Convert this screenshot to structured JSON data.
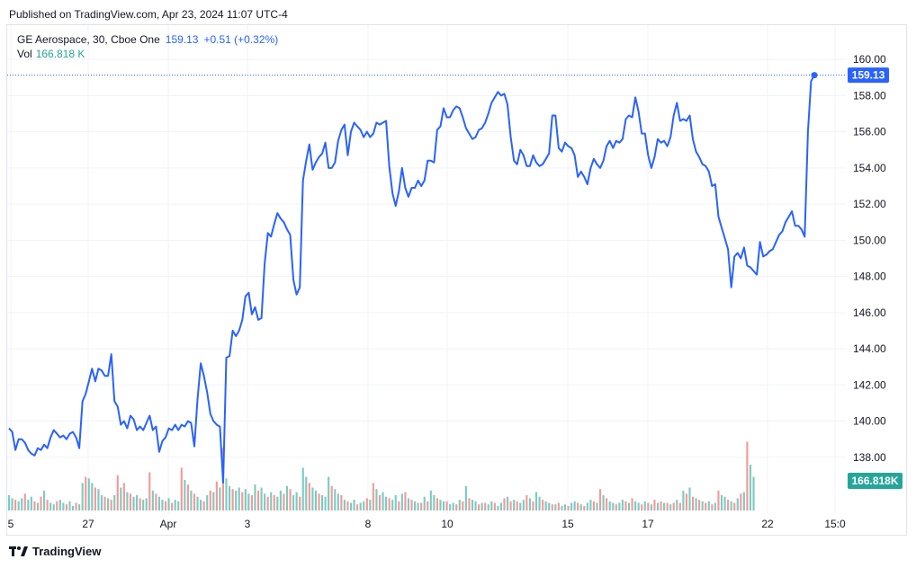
{
  "header": {
    "published": "Published on TradingView.com, Apr 23, 2024 11:07 UTC-4"
  },
  "legend": {
    "symbol": "GE Aerospace, 30, Cboe One",
    "price": "159.13",
    "change": "+0.51 (+0.32%)",
    "vol_label": "Vol",
    "vol_value": "166.818 K"
  },
  "footer": {
    "brand": "TradingView"
  },
  "colors": {
    "line": "#2962ff",
    "vol_up": "#26a69a",
    "vol_down": "#ef5350",
    "price_label_bg": "#2962ff",
    "vol_label_bg": "#26a69a"
  },
  "chart_data": {
    "type": "line",
    "y_axis_ticks": [
      "138.00",
      "140.00",
      "142.00",
      "144.00",
      "146.00",
      "148.00",
      "150.00",
      "152.00",
      "154.00",
      "156.00",
      "158.00",
      "160.00"
    ],
    "ylim": [
      136.3,
      161.0
    ],
    "x_axis_labels": [
      "5",
      "27",
      "Apr",
      "3",
      "8",
      "10",
      "15",
      "17",
      "22",
      "15:0"
    ],
    "last_price_label": "159.13",
    "last_volume_label": "166.818K",
    "grid": true,
    "series": [
      {
        "values": [
          139.6,
          139.4,
          138.4,
          139.0,
          139.0,
          138.8,
          138.4,
          138.2,
          138.1,
          138.5,
          138.4,
          138.7,
          138.5,
          139.1,
          139.5,
          139.3,
          139.1,
          139.2,
          139.0,
          139.3,
          139.4,
          139.1,
          138.5,
          141.1,
          141.5,
          142.2,
          142.9,
          142.2,
          142.9,
          142.8,
          142.5,
          142.5,
          143.7,
          141.1,
          140.8,
          139.8,
          140.0,
          139.6,
          140.3,
          140.1,
          139.5,
          139.7,
          139.5,
          139.9,
          140.3,
          139.5,
          139.7,
          138.3,
          138.9,
          139.1,
          139.6,
          139.5,
          139.8,
          139.5,
          139.8,
          139.7,
          140.0,
          139.9,
          138.6,
          141.2,
          143.2,
          142.5,
          141.6,
          140.4,
          140.0,
          139.8,
          139.7,
          136.6,
          143.5,
          143.6,
          145.0,
          144.7,
          145.0,
          145.6,
          146.9,
          147.1,
          145.9,
          146.3,
          145.6,
          145.7,
          148.7,
          150.4,
          150.2,
          150.9,
          151.5,
          151.2,
          151.0,
          150.6,
          150.3,
          147.8,
          147.0,
          147.4,
          153.3,
          154.4,
          155.3,
          153.9,
          154.3,
          154.6,
          154.8,
          155.4,
          154.0,
          154.0,
          154.3,
          155.5,
          156.1,
          156.4,
          154.7,
          156.0,
          156.5,
          156.3,
          156.1,
          155.7,
          156.0,
          155.7,
          155.9,
          156.5,
          156.4,
          156.5,
          156.6,
          154.1,
          152.6,
          151.9,
          152.7,
          154.0,
          152.9,
          152.4,
          152.9,
          152.9,
          153.3,
          153.0,
          153.3,
          154.4,
          154.4,
          154.3,
          156.1,
          156.3,
          157.3,
          156.8,
          156.8,
          157.2,
          157.4,
          157.3,
          156.8,
          156.2,
          155.9,
          155.6,
          155.7,
          156.1,
          156.2,
          156.5,
          157.0,
          157.6,
          157.9,
          158.2,
          158.0,
          158.1,
          157.5,
          155.7,
          154.4,
          154.2,
          155.0,
          154.7,
          154.1,
          154.1,
          154.7,
          154.3,
          154.1,
          154.2,
          154.5,
          154.8,
          156.9,
          156.9,
          155.1,
          154.9,
          155.4,
          155.2,
          155.1,
          154.7,
          153.5,
          153.8,
          153.5,
          153.1,
          154.0,
          154.5,
          154.2,
          154.0,
          154.4,
          155.2,
          155.5,
          155.1,
          155.5,
          155.4,
          155.6,
          156.7,
          156.9,
          156.8,
          157.9,
          157.1,
          155.9,
          155.9,
          154.7,
          154.0,
          154.6,
          155.6,
          155.4,
          155.5,
          155.2,
          155.7,
          156.9,
          157.6,
          156.6,
          156.7,
          156.6,
          156.9,
          155.6,
          154.9,
          154.6,
          154.2,
          154.1,
          153.8,
          153.0,
          153.1,
          151.3,
          150.7,
          150.1,
          149.5,
          147.4,
          149.1,
          149.3,
          149.0,
          149.6,
          148.6,
          148.5,
          148.3,
          148.1,
          149.9,
          149.1,
          149.2,
          149.4,
          149.5,
          149.9,
          150.3,
          150.5,
          151.0,
          151.3,
          151.6,
          150.8,
          150.8,
          150.6,
          150.2,
          156.0,
          158.8,
          159.13
        ]
      }
    ],
    "volume": [
      [
        "up",
        0.2
      ],
      [
        "up",
        0.16
      ],
      [
        "down",
        0.14
      ],
      [
        "up",
        0.12
      ],
      [
        "up",
        0.16
      ],
      [
        "down",
        0.22
      ],
      [
        "up",
        0.14
      ],
      [
        "up",
        0.18
      ],
      [
        "down",
        0.12
      ],
      [
        "up",
        0.1
      ],
      [
        "down",
        0.18
      ],
      [
        "up",
        0.26
      ],
      [
        "down",
        0.14
      ],
      [
        "up",
        0.1
      ],
      [
        "up",
        0.08
      ],
      [
        "down",
        0.12
      ],
      [
        "up",
        0.14
      ],
      [
        "up",
        0.1
      ],
      [
        "down",
        0.08
      ],
      [
        "up",
        0.12
      ],
      [
        "up",
        0.06
      ],
      [
        "down",
        0.1
      ],
      [
        "up",
        0.08
      ],
      [
        "up",
        0.36
      ],
      [
        "down",
        0.44
      ],
      [
        "up",
        0.42
      ],
      [
        "up",
        0.36
      ],
      [
        "down",
        0.3
      ],
      [
        "up",
        0.28
      ],
      [
        "up",
        0.2
      ],
      [
        "down",
        0.18
      ],
      [
        "up",
        0.16
      ],
      [
        "down",
        0.14
      ],
      [
        "up",
        0.2
      ],
      [
        "down",
        0.46
      ],
      [
        "up",
        0.3
      ],
      [
        "down",
        0.36
      ],
      [
        "up",
        0.24
      ],
      [
        "down",
        0.22
      ],
      [
        "up",
        0.18
      ],
      [
        "up",
        0.2
      ],
      [
        "down",
        0.16
      ],
      [
        "up",
        0.14
      ],
      [
        "up",
        0.16
      ],
      [
        "down",
        0.5
      ],
      [
        "up",
        0.26
      ],
      [
        "down",
        0.22
      ],
      [
        "up",
        0.18
      ],
      [
        "up",
        0.14
      ],
      [
        "down",
        0.12
      ],
      [
        "up",
        0.16
      ],
      [
        "down",
        0.1
      ],
      [
        "up",
        0.14
      ],
      [
        "up",
        0.12
      ],
      [
        "down",
        0.56
      ],
      [
        "up",
        0.4
      ],
      [
        "down",
        0.34
      ],
      [
        "up",
        0.26
      ],
      [
        "down",
        0.22
      ],
      [
        "up",
        0.18
      ],
      [
        "up",
        0.14
      ],
      [
        "down",
        0.12
      ],
      [
        "up",
        0.2
      ],
      [
        "down",
        0.26
      ],
      [
        "up",
        0.24
      ],
      [
        "down",
        0.38
      ],
      [
        "up",
        0.3
      ],
      [
        "down",
        0.82
      ],
      [
        "up",
        0.42
      ],
      [
        "up",
        0.32
      ],
      [
        "down",
        0.28
      ],
      [
        "up",
        0.26
      ],
      [
        "up",
        0.3
      ],
      [
        "down",
        0.24
      ],
      [
        "up",
        0.28
      ],
      [
        "up",
        0.22
      ],
      [
        "down",
        0.2
      ],
      [
        "up",
        0.34
      ],
      [
        "down",
        0.26
      ],
      [
        "up",
        0.3
      ],
      [
        "up",
        0.22
      ],
      [
        "down",
        0.18
      ],
      [
        "up",
        0.24
      ],
      [
        "down",
        0.2
      ],
      [
        "up",
        0.18
      ],
      [
        "up",
        0.26
      ],
      [
        "down",
        0.22
      ],
      [
        "up",
        0.32
      ],
      [
        "down",
        0.28
      ],
      [
        "up",
        0.2
      ],
      [
        "up",
        0.24
      ],
      [
        "down",
        0.18
      ],
      [
        "up",
        0.56
      ],
      [
        "up",
        0.44
      ],
      [
        "down",
        0.36
      ],
      [
        "up",
        0.3
      ],
      [
        "up",
        0.26
      ],
      [
        "down",
        0.22
      ],
      [
        "up",
        0.2
      ],
      [
        "up",
        0.18
      ],
      [
        "up",
        0.44
      ],
      [
        "down",
        0.32
      ],
      [
        "up",
        0.28
      ],
      [
        "up",
        0.22
      ],
      [
        "down",
        0.2
      ],
      [
        "up",
        0.14
      ],
      [
        "down",
        0.12
      ],
      [
        "up",
        0.1
      ],
      [
        "up",
        0.14
      ],
      [
        "down",
        0.08
      ],
      [
        "up",
        0.1
      ],
      [
        "up",
        0.12
      ],
      [
        "down",
        0.16
      ],
      [
        "up",
        0.14
      ],
      [
        "down",
        0.36
      ],
      [
        "up",
        0.28
      ],
      [
        "down",
        0.2
      ],
      [
        "up",
        0.24
      ],
      [
        "up",
        0.18
      ],
      [
        "down",
        0.16
      ],
      [
        "up",
        0.14
      ],
      [
        "up",
        0.2
      ],
      [
        "down",
        0.12
      ],
      [
        "up",
        0.22
      ],
      [
        "down",
        0.24
      ],
      [
        "up",
        0.16
      ],
      [
        "down",
        0.14
      ],
      [
        "up",
        0.12
      ],
      [
        "up",
        0.1
      ],
      [
        "down",
        0.1
      ],
      [
        "up",
        0.18
      ],
      [
        "down",
        0.12
      ],
      [
        "up",
        0.26
      ],
      [
        "up",
        0.2
      ],
      [
        "down",
        0.16
      ],
      [
        "up",
        0.14
      ],
      [
        "up",
        0.12
      ],
      [
        "down",
        0.12
      ],
      [
        "up",
        0.08
      ],
      [
        "up",
        0.1
      ],
      [
        "down",
        0.08
      ],
      [
        "up",
        0.14
      ],
      [
        "down",
        0.12
      ],
      [
        "up",
        0.32
      ],
      [
        "down",
        0.16
      ],
      [
        "up",
        0.14
      ],
      [
        "up",
        0.12
      ],
      [
        "down",
        0.08
      ],
      [
        "up",
        0.1
      ],
      [
        "down",
        0.1
      ],
      [
        "up",
        0.08
      ],
      [
        "up",
        0.12
      ],
      [
        "down",
        0.1
      ],
      [
        "up",
        0.06
      ],
      [
        "up",
        0.1
      ],
      [
        "down",
        0.16
      ],
      [
        "up",
        0.18
      ],
      [
        "down",
        0.12
      ],
      [
        "up",
        0.14
      ],
      [
        "down",
        0.12
      ],
      [
        "up",
        0.1
      ],
      [
        "up",
        0.14
      ],
      [
        "down",
        0.2
      ],
      [
        "up",
        0.16
      ],
      [
        "down",
        0.12
      ],
      [
        "up",
        0.24
      ],
      [
        "up",
        0.18
      ],
      [
        "down",
        0.14
      ],
      [
        "up",
        0.12
      ],
      [
        "up",
        0.1
      ],
      [
        "down",
        0.08
      ],
      [
        "up",
        0.08
      ],
      [
        "down",
        0.1
      ],
      [
        "up",
        0.06
      ],
      [
        "up",
        0.08
      ],
      [
        "down",
        0.06
      ],
      [
        "up",
        0.1
      ],
      [
        "up",
        0.12
      ],
      [
        "down",
        0.1
      ],
      [
        "up",
        0.08
      ],
      [
        "down",
        0.06
      ],
      [
        "up",
        0.1
      ],
      [
        "up",
        0.14
      ],
      [
        "down",
        0.12
      ],
      [
        "up",
        0.1
      ],
      [
        "down",
        0.28
      ],
      [
        "up",
        0.2
      ],
      [
        "down",
        0.16
      ],
      [
        "up",
        0.12
      ],
      [
        "up",
        0.1
      ],
      [
        "down",
        0.08
      ],
      [
        "up",
        0.1
      ],
      [
        "up",
        0.14
      ],
      [
        "down",
        0.12
      ],
      [
        "up",
        0.1
      ],
      [
        "down",
        0.16
      ],
      [
        "up",
        0.12
      ],
      [
        "up",
        0.1
      ],
      [
        "down",
        0.08
      ],
      [
        "up",
        0.12
      ],
      [
        "down",
        0.1
      ],
      [
        "up",
        0.08
      ],
      [
        "down",
        0.14
      ],
      [
        "up",
        0.1
      ],
      [
        "down",
        0.12
      ],
      [
        "up",
        0.1
      ],
      [
        "down",
        0.1
      ],
      [
        "up",
        0.08
      ],
      [
        "down",
        0.1
      ],
      [
        "up",
        0.14
      ],
      [
        "down",
        0.1
      ],
      [
        "up",
        0.26
      ],
      [
        "down",
        0.22
      ],
      [
        "up",
        0.3
      ],
      [
        "down",
        0.18
      ],
      [
        "up",
        0.16
      ],
      [
        "down",
        0.14
      ],
      [
        "up",
        0.12
      ],
      [
        "down",
        0.1
      ],
      [
        "up",
        0.12
      ],
      [
        "down",
        0.08
      ],
      [
        "up",
        0.1
      ],
      [
        "down",
        0.26
      ],
      [
        "up",
        0.2
      ],
      [
        "up",
        0.18
      ],
      [
        "down",
        0.14
      ],
      [
        "up",
        0.12
      ],
      [
        "down",
        0.1
      ],
      [
        "up",
        0.16
      ],
      [
        "down",
        0.22
      ],
      [
        "up",
        0.24
      ],
      [
        "down",
        0.9
      ],
      [
        "up",
        0.6
      ],
      [
        "up",
        0.44
      ]
    ]
  }
}
